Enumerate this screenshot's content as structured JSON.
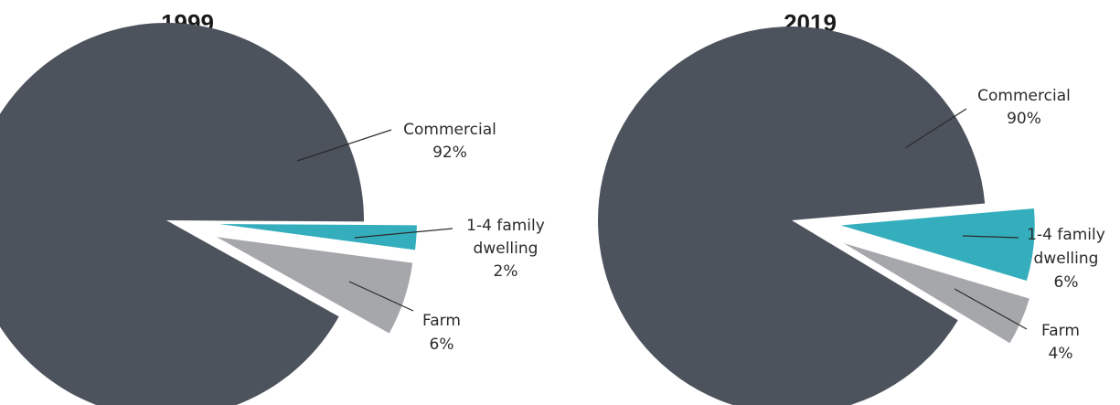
{
  "chart_data": [
    {
      "type": "pie",
      "title": "1999",
      "series": [
        {
          "values": [
            {
              "label": "Commercial",
              "value": 92,
              "display": "92%",
              "color": "#4d535d"
            },
            {
              "label": "1-4 family",
              "label2": "dwelling",
              "value": 2,
              "display": "2%",
              "color": "#34aebd"
            },
            {
              "label": "Farm",
              "value": 6,
              "display": "6%",
              "color": "#a5a7aa"
            }
          ]
        }
      ]
    },
    {
      "type": "pie",
      "title": "2019",
      "series": [
        {
          "values": [
            {
              "label": "Commercial",
              "value": 90,
              "display": "90%",
              "color": "#4d535d"
            },
            {
              "label": "1-4 family",
              "label2": "dwelling",
              "value": 6,
              "display": "6%",
              "color": "#34aebd"
            },
            {
              "label": "Farm",
              "value": 4,
              "display": "4%",
              "color": "#a5a7aa"
            }
          ]
        }
      ]
    }
  ]
}
